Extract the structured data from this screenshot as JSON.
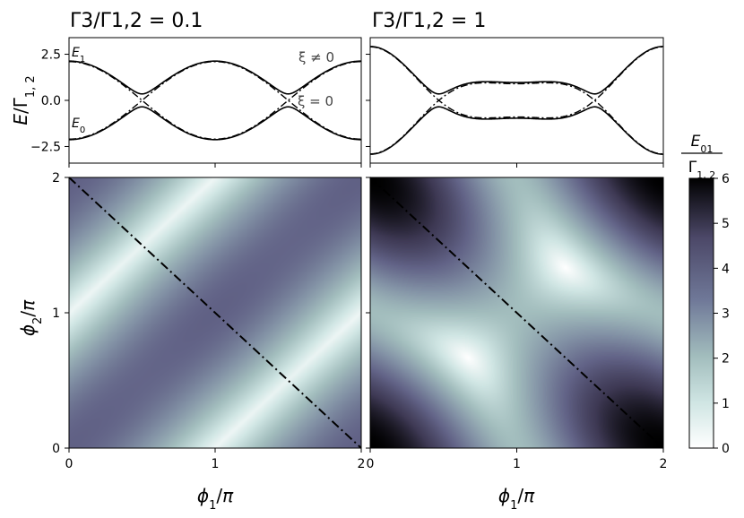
{
  "chart_data": [
    {
      "type": "line",
      "title": "Γ3/Γ1,2 = 0.1",
      "gamma_ratio": 0.1,
      "ylabel": "E/Γ1,2",
      "xlim": [
        0,
        2
      ],
      "ylim": [
        -3.4,
        3.4
      ],
      "yticks": [
        -2.5,
        0.0,
        2.5
      ],
      "ytick_labels": [
        "−2.5",
        "0.0",
        "2.5"
      ],
      "series": [
        {
          "name": "ξ ≠ 0",
          "style": "solid"
        },
        {
          "name": "ξ = 0",
          "style": "dash-dot"
        }
      ],
      "annotations": [
        "E1",
        "E0",
        "ξ ≠ 0",
        "ξ = 0"
      ]
    },
    {
      "type": "line",
      "title": "Γ3/Γ1,2 = 1",
      "gamma_ratio": 1,
      "xlim": [
        0,
        2
      ],
      "ylim": [
        -3.4,
        3.4
      ],
      "series": [
        {
          "name": "ξ ≠ 0",
          "style": "solid"
        },
        {
          "name": "ξ = 0",
          "style": "dash-dot"
        }
      ]
    },
    {
      "type": "heatmap",
      "gamma_ratio": 0.1,
      "xlabel": "ϕ1/π",
      "ylabel": "ϕ2/π",
      "xlim": [
        0,
        2
      ],
      "ylim": [
        0,
        2
      ],
      "xticks": [
        "0",
        "1",
        "2"
      ],
      "yticks": [
        "0",
        "1",
        "2"
      ],
      "diagonal_line": {
        "from": [
          0,
          2
        ],
        "to": [
          2,
          0
        ],
        "style": "dash-dot"
      }
    },
    {
      "type": "heatmap",
      "gamma_ratio": 1,
      "xlabel": "ϕ1/π",
      "xlim": [
        0,
        2
      ],
      "ylim": [
        0,
        2
      ],
      "xticks": [
        "0",
        "1",
        "2"
      ],
      "diagonal_line": {
        "from": [
          0,
          2
        ],
        "to": [
          2,
          0
        ],
        "style": "dash-dot"
      }
    }
  ],
  "colorbar": {
    "label_num": "E01",
    "label_den": "Γ1,2",
    "range": [
      0,
      6
    ],
    "ticks": [
      "0",
      "1",
      "2",
      "3",
      "4",
      "5",
      "6"
    ],
    "colormap": [
      "#ffffff",
      "#cfe5e3",
      "#a2bdbd",
      "#6f7898",
      "#4c4868",
      "#000000"
    ]
  },
  "colors": {
    "curve": "#000000",
    "annotation": "#444444"
  }
}
